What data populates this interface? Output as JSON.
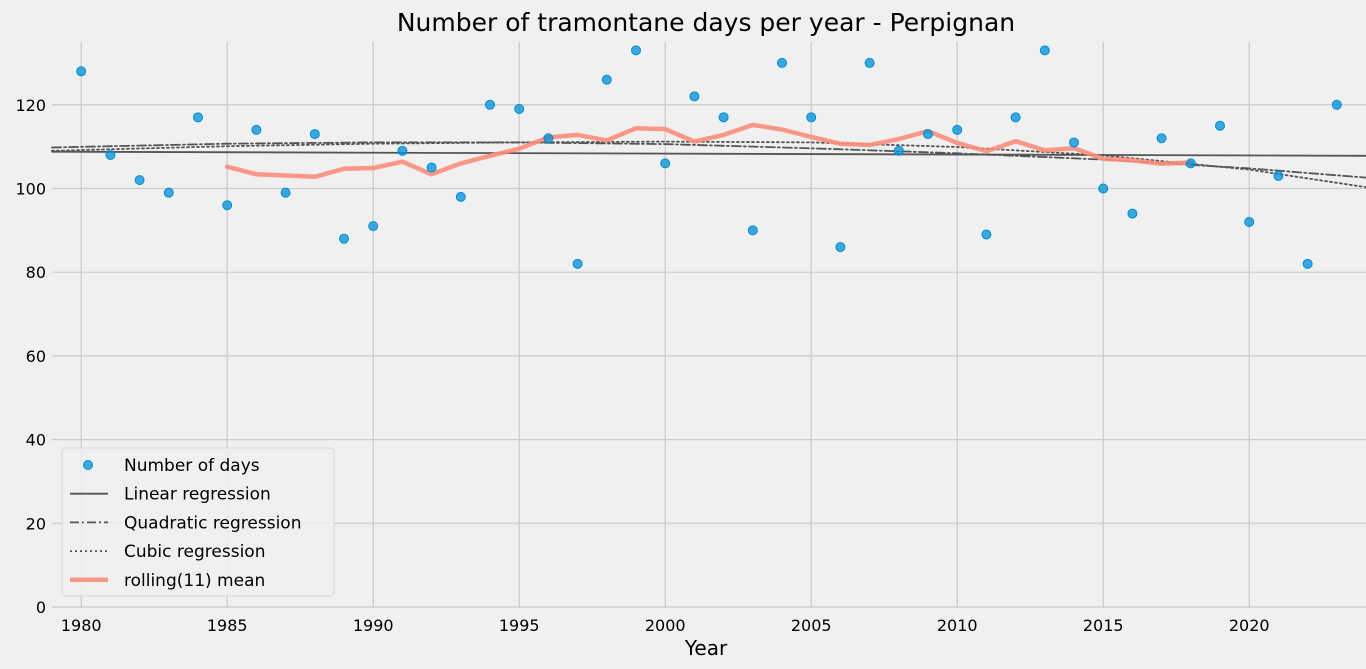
{
  "chart_data": {
    "type": "line",
    "title": "Number of tramontane days per year - Perpignan",
    "xlabel": "Year",
    "ylabel": "",
    "xlim": [
      1979,
      2024
    ],
    "ylim": [
      0,
      135
    ],
    "xticks": [
      1980,
      1985,
      1990,
      1995,
      2000,
      2005,
      2010,
      2015,
      2020
    ],
    "yticks": [
      0,
      20,
      40,
      60,
      80,
      100,
      120
    ],
    "grid": true,
    "legend_position": "lower-left",
    "colors": {
      "points": "#008fd5",
      "regression": "#555555",
      "rolling": "#fc8d7a",
      "background": "#f0f0f0",
      "grid": "#cbcbcb"
    },
    "series": [
      {
        "name": "Number of days",
        "kind": "scatter",
        "x": [
          1980,
          1981,
          1982,
          1983,
          1984,
          1985,
          1986,
          1987,
          1988,
          1989,
          1990,
          1991,
          1992,
          1993,
          1994,
          1995,
          1996,
          1997,
          1998,
          1999,
          2000,
          2001,
          2002,
          2003,
          2004,
          2005,
          2006,
          2007,
          2008,
          2009,
          2010,
          2011,
          2012,
          2013,
          2014,
          2015,
          2016,
          2017,
          2018,
          2019,
          2020,
          2021,
          2022,
          2023
        ],
        "y": [
          128,
          108,
          102,
          99,
          117,
          96,
          114,
          99,
          113,
          88,
          91,
          109,
          105,
          98,
          120,
          119,
          112,
          82,
          126,
          133,
          106,
          122,
          117,
          90,
          130,
          117,
          86,
          130,
          109,
          113,
          114,
          89,
          117,
          133,
          111,
          100,
          94,
          112,
          106,
          115,
          92,
          103,
          82,
          120
        ]
      },
      {
        "name": "Linear regression",
        "kind": "line",
        "style": "solid",
        "x": [
          1979,
          2024
        ],
        "y": [
          108.8,
          107.8
        ]
      },
      {
        "name": "Quadratic regression",
        "kind": "line",
        "style": "dashdot",
        "x": [
          1979,
          1985,
          1990,
          1995,
          2000,
          2005,
          2010,
          2015,
          2020,
          2024
        ],
        "y": [
          109.8,
          110.7,
          111.0,
          111.0,
          110.6,
          109.6,
          108.4,
          106.9,
          104.8,
          102.6
        ]
      },
      {
        "name": "Cubic regression",
        "kind": "line",
        "style": "dotted",
        "x": [
          1979,
          1985,
          1990,
          1995,
          2000,
          2005,
          2010,
          2015,
          2020,
          2024
        ],
        "y": [
          109.0,
          110.1,
          110.7,
          111.0,
          111.2,
          111.0,
          109.9,
          107.9,
          104.5,
          100.3
        ]
      },
      {
        "name": "rolling(11) mean",
        "kind": "line",
        "style": "thick",
        "x": [
          1985,
          1986,
          1987,
          1988,
          1989,
          1990,
          1991,
          1992,
          1993,
          1994,
          1995,
          1996,
          1997,
          1998,
          1999,
          2000,
          2001,
          2002,
          2003,
          2004,
          2005,
          2006,
          2007,
          2008,
          2009,
          2010,
          2011,
          2012,
          2013,
          2014,
          2015,
          2016,
          2017,
          2018
        ],
        "y": [
          105.2,
          103.4,
          103.1,
          102.8,
          104.7,
          104.9,
          106.4,
          103.4,
          106.0,
          107.8,
          109.5,
          112.2,
          112.8,
          111.5,
          114.4,
          114.2,
          111.2,
          112.8,
          115.2,
          114.1,
          112.3,
          110.7,
          110.4,
          111.8,
          113.7,
          110.9,
          108.9,
          111.3,
          109.1,
          109.6,
          107.1,
          106.7,
          105.9,
          106.2
        ]
      }
    ]
  }
}
